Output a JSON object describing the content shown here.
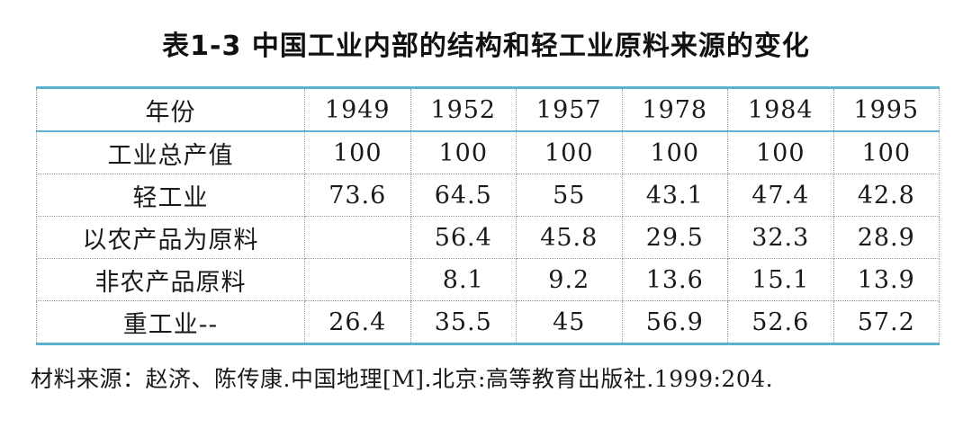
{
  "title": "表1-3 中国工业内部的结构和轻工业原料来源的变化",
  "table": {
    "header": [
      "年份",
      "1949",
      "1952",
      "1957",
      "1978",
      "1984",
      "1995"
    ],
    "rows": [
      {
        "label": "工业总产值",
        "values": [
          "100",
          "100",
          "100",
          "100",
          "100",
          "100"
        ]
      },
      {
        "label": "轻工业",
        "values": [
          "73.6",
          "64.5",
          "55",
          "43.1",
          "47.4",
          "42.8"
        ]
      },
      {
        "label": "以农产品为原料",
        "values": [
          "",
          "56.4",
          "45.8",
          "29.5",
          "32.3",
          "28.9"
        ]
      },
      {
        "label": "非农产品原料",
        "values": [
          "",
          "8.1",
          "9.2",
          "13.6",
          "15.1",
          "13.9"
        ]
      },
      {
        "label": "重工业--",
        "values": [
          "26.4",
          "35.5",
          "45",
          "56.9",
          "52.6",
          "57.2"
        ]
      }
    ]
  },
  "source": "材料来源：赵济、陈传康.中国地理[M].北京:高等教育出版社.1999:204.",
  "colors": {
    "rule": "#5bb3cf",
    "grid": "#9a9a9a",
    "text": "#1a1a1a"
  }
}
